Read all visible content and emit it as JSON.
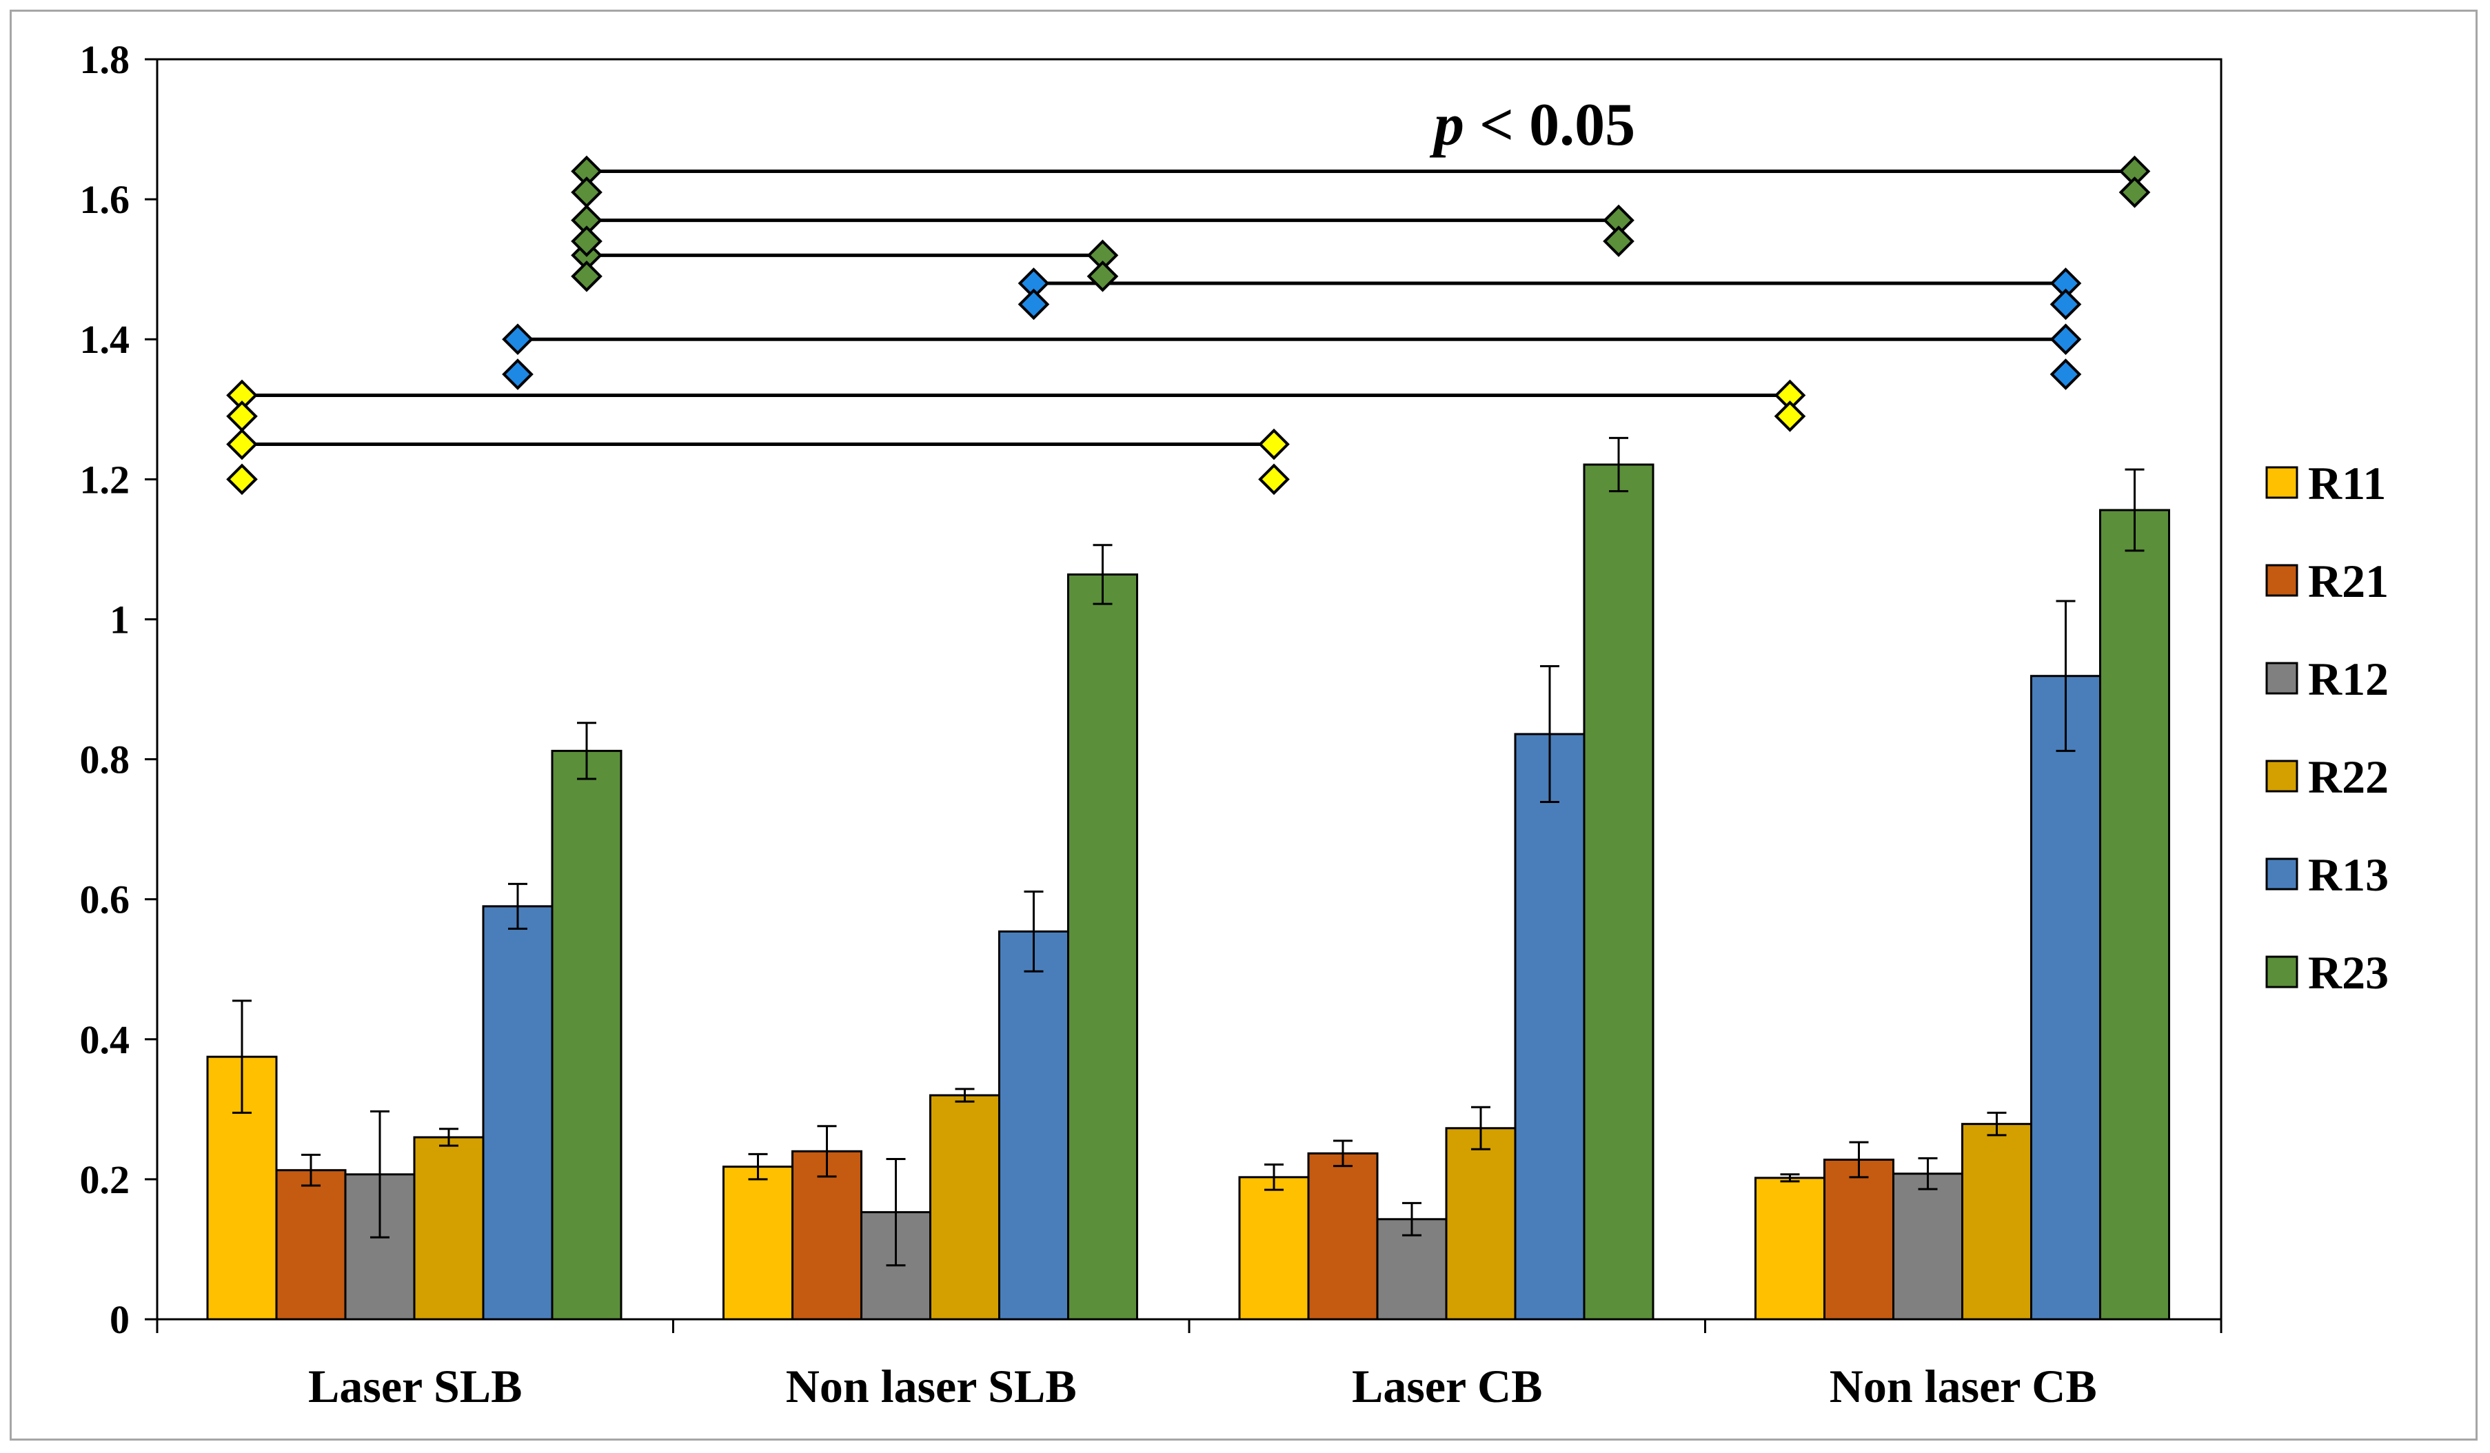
{
  "chart_data": {
    "type": "bar",
    "title": "",
    "xlabel": "",
    "ylabel": "",
    "ylim": [
      0,
      1.8
    ],
    "yticks": [
      "0",
      "0.2",
      "0.4",
      "0.6",
      "0.8",
      "1",
      "1.2",
      "1.4",
      "1.6",
      "1.8"
    ],
    "categories": [
      "Laser SLB",
      "Non laser SLB",
      "Laser CB",
      "Non laser CB"
    ],
    "legend_position": "right",
    "series": [
      {
        "name": "R11",
        "color": "#FFC000",
        "values": [
          0.375,
          0.218,
          0.203,
          0.202
        ],
        "errors": [
          0.08,
          0.018,
          0.018,
          0.005
        ]
      },
      {
        "name": "R21",
        "color": "#C55A11",
        "values": [
          0.213,
          0.24,
          0.237,
          0.228
        ],
        "errors": [
          0.022,
          0.036,
          0.018,
          0.025
        ]
      },
      {
        "name": "R12",
        "color": "#808080",
        "values": [
          0.207,
          0.153,
          0.143,
          0.208
        ],
        "errors": [
          0.09,
          0.076,
          0.023,
          0.022
        ]
      },
      {
        "name": "R22",
        "color": "#D4A000",
        "values": [
          0.26,
          0.32,
          0.273,
          0.279
        ],
        "errors": [
          0.012,
          0.009,
          0.03,
          0.016
        ]
      },
      {
        "name": "R13",
        "color": "#4A7EBB",
        "values": [
          0.59,
          0.554,
          0.836,
          0.919
        ],
        "errors": [
          0.032,
          0.057,
          0.097,
          0.107
        ]
      },
      {
        "name": "R23",
        "color": "#5B8F3A",
        "values": [
          0.812,
          1.064,
          1.221,
          1.156
        ],
        "errors": [
          0.04,
          0.042,
          0.038,
          0.058
        ]
      }
    ],
    "significance": {
      "label_italic": "p",
      "label_rest": " < 0.05",
      "brackets": [
        {
          "color": "#FFFF00",
          "y": 1.25,
          "x1": 0,
          "x2": 2,
          "ends": [
            [
              1.25,
              1.2
            ],
            [
              1.25,
              1.2
            ]
          ]
        },
        {
          "color": "#FFFF00",
          "y": 1.32,
          "x1": 0,
          "x2": 3,
          "ends": [
            [
              1.32,
              1.29
            ],
            [
              1.32,
              1.29
            ]
          ]
        },
        {
          "color": "#1E88E5",
          "y": 1.4,
          "x1": 0,
          "x2": 3,
          "ends": [
            [
              1.4,
              1.35
            ],
            [
              1.4,
              1.35
            ]
          ]
        },
        {
          "color": "#1E88E5",
          "y": 1.48,
          "x1": 1,
          "x2": 3,
          "ends": [
            [
              1.48,
              1.45
            ],
            [
              1.48,
              1.45
            ]
          ]
        },
        {
          "color": "#5B8F3A",
          "y": 1.52,
          "x1": 0,
          "x2": 1,
          "ends": [
            [
              1.52,
              1.49
            ],
            [
              1.52,
              1.49
            ]
          ]
        },
        {
          "color": "#5B8F3A",
          "y": 1.57,
          "x1": 0,
          "x2": 2,
          "ends": [
            [
              1.57,
              1.54
            ],
            [
              1.57,
              1.54
            ]
          ]
        },
        {
          "color": "#5B8F3A",
          "y": 1.64,
          "x1": 0,
          "x2": 3,
          "ends": [
            [
              1.64,
              1.61
            ],
            [
              1.64,
              1.61
            ]
          ]
        }
      ]
    }
  }
}
